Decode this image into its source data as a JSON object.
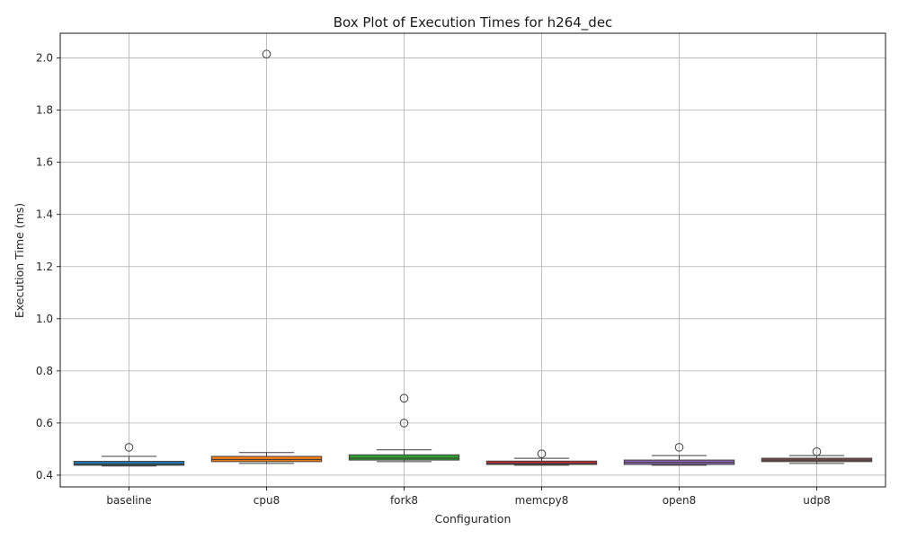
{
  "chart_data": {
    "type": "box",
    "title": "Box Plot of Execution Times for h264_dec",
    "xlabel": "Configuration",
    "ylabel": "Execution Time (ms)",
    "ylim": [
      0.355,
      2.095
    ],
    "yticks": [
      0.4,
      0.6,
      0.8,
      1.0,
      1.2,
      1.4,
      1.6,
      1.8,
      2.0
    ],
    "ytick_labels": [
      "0.4",
      "0.6",
      "0.8",
      "1.0",
      "1.2",
      "1.4",
      "1.6",
      "1.8",
      "2.0"
    ],
    "grid": true,
    "categories": [
      "baseline",
      "cpu8",
      "fork8",
      "memcpy8",
      "open8",
      "udp8"
    ],
    "boxes": [
      {
        "name": "baseline",
        "color": "#1f77b4",
        "whisker_low": 0.435,
        "q1": 0.438,
        "median": 0.442,
        "q3": 0.453,
        "whisker_high": 0.472,
        "outliers": [
          0.507
        ]
      },
      {
        "name": "cpu8",
        "color": "#ff7f0e",
        "whisker_low": 0.445,
        "q1": 0.452,
        "median": 0.46,
        "q3": 0.472,
        "whisker_high": 0.487,
        "outliers": [
          2.015
        ]
      },
      {
        "name": "fork8",
        "color": "#2ca02c",
        "whisker_low": 0.452,
        "q1": 0.458,
        "median": 0.465,
        "q3": 0.478,
        "whisker_high": 0.497,
        "outliers": [
          0.6,
          0.695
        ]
      },
      {
        "name": "memcpy8",
        "color": "#d62728",
        "whisker_low": 0.438,
        "q1": 0.441,
        "median": 0.445,
        "q3": 0.454,
        "whisker_high": 0.465,
        "outliers": [
          0.482
        ]
      },
      {
        "name": "open8",
        "color": "#9467bd",
        "whisker_low": 0.438,
        "q1": 0.441,
        "median": 0.449,
        "q3": 0.458,
        "whisker_high": 0.475,
        "outliers": [
          0.507
        ]
      },
      {
        "name": "udp8",
        "color": "#8c564b",
        "whisker_low": 0.445,
        "q1": 0.452,
        "median": 0.458,
        "q3": 0.465,
        "whisker_high": 0.475,
        "outliers": [
          0.49
        ]
      }
    ]
  }
}
